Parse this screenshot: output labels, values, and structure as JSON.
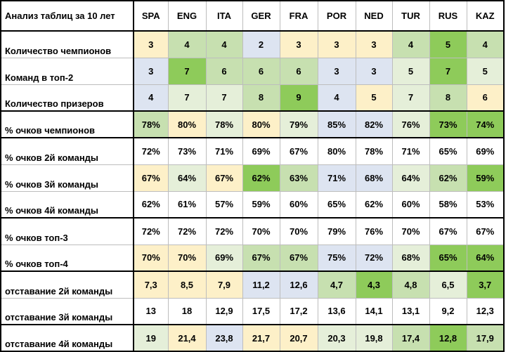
{
  "title": "Анализ таблиц за 10 лет",
  "countries": [
    "SPA",
    "ENG",
    "ITA",
    "GER",
    "FRA",
    "POR",
    "NED",
    "TUR",
    "RUS",
    "KAZ"
  ],
  "colors": {
    "y": "#fdf0c8",
    "b": "#dde4f1",
    "l": "#e5efd9",
    "m": "#c7e0b0",
    "d": "#8ecb5a",
    "w": "#ffffff"
  },
  "rows": [
    {
      "label": "Количество чемпионов",
      "values": [
        "3",
        "4",
        "4",
        "2",
        "3",
        "3",
        "3",
        "4",
        "5",
        "4"
      ],
      "fills": [
        "y",
        "m",
        "m",
        "b",
        "y",
        "y",
        "y",
        "m",
        "d",
        "m"
      ]
    },
    {
      "label": "Команд в топ-2",
      "values": [
        "3",
        "7",
        "6",
        "6",
        "6",
        "3",
        "3",
        "5",
        "7",
        "5"
      ],
      "fills": [
        "b",
        "d",
        "m",
        "m",
        "m",
        "b",
        "b",
        "l",
        "d",
        "l"
      ]
    },
    {
      "label": "Количество призеров",
      "values": [
        "4",
        "7",
        "7",
        "8",
        "9",
        "4",
        "5",
        "7",
        "8",
        "6"
      ],
      "fills": [
        "b",
        "l",
        "l",
        "m",
        "d",
        "b",
        "y",
        "l",
        "m",
        "y"
      ]
    },
    {
      "label": "% очков чемпионов",
      "values": [
        "78%",
        "80%",
        "78%",
        "80%",
        "79%",
        "85%",
        "82%",
        "76%",
        "73%",
        "74%"
      ],
      "fills": [
        "m",
        "y",
        "l",
        "y",
        "l",
        "b",
        "b",
        "l",
        "d",
        "d"
      ]
    },
    {
      "label": "% очков 2й команды",
      "values": [
        "72%",
        "73%",
        "71%",
        "69%",
        "67%",
        "80%",
        "78%",
        "71%",
        "65%",
        "69%"
      ],
      "fills": [
        "w",
        "w",
        "w",
        "w",
        "w",
        "w",
        "w",
        "w",
        "w",
        "w"
      ]
    },
    {
      "label": "% очков 3й команды",
      "values": [
        "67%",
        "64%",
        "67%",
        "62%",
        "63%",
        "71%",
        "68%",
        "64%",
        "62%",
        "59%"
      ],
      "fills": [
        "y",
        "l",
        "y",
        "d",
        "m",
        "b",
        "b",
        "l",
        "m",
        "d"
      ]
    },
    {
      "label": "% очков 4й команды",
      "values": [
        "62%",
        "61%",
        "57%",
        "59%",
        "60%",
        "65%",
        "62%",
        "60%",
        "58%",
        "53%"
      ],
      "fills": [
        "w",
        "w",
        "w",
        "w",
        "w",
        "w",
        "w",
        "w",
        "w",
        "w"
      ]
    },
    {
      "label": "% очков топ-3",
      "values": [
        "72%",
        "72%",
        "72%",
        "70%",
        "70%",
        "79%",
        "76%",
        "70%",
        "67%",
        "67%"
      ],
      "fills": [
        "w",
        "w",
        "w",
        "w",
        "w",
        "w",
        "w",
        "w",
        "w",
        "w"
      ]
    },
    {
      "label": "% очков топ-4",
      "values": [
        "70%",
        "70%",
        "69%",
        "67%",
        "67%",
        "75%",
        "72%",
        "68%",
        "65%",
        "64%"
      ],
      "fills": [
        "y",
        "y",
        "l",
        "m",
        "m",
        "b",
        "b",
        "l",
        "d",
        "d"
      ]
    },
    {
      "label": "отставание 2й команды",
      "values": [
        "7,3",
        "8,5",
        "7,9",
        "11,2",
        "12,6",
        "4,7",
        "4,3",
        "4,8",
        "6,5",
        "3,7"
      ],
      "fills": [
        "y",
        "y",
        "y",
        "b",
        "b",
        "m",
        "d",
        "m",
        "l",
        "d"
      ]
    },
    {
      "label": "отставание 3й команды",
      "values": [
        "13",
        "18",
        "12,9",
        "17,5",
        "17,2",
        "13,6",
        "14,1",
        "13,1",
        "9,2",
        "12,3"
      ],
      "fills": [
        "w",
        "w",
        "w",
        "w",
        "w",
        "w",
        "w",
        "w",
        "w",
        "w"
      ]
    },
    {
      "label": "отставание 4й команды",
      "values": [
        "19",
        "21,4",
        "23,8",
        "21,7",
        "20,7",
        "20,3",
        "19,8",
        "17,4",
        "12,8",
        "17,9"
      ],
      "fills": [
        "l",
        "y",
        "b",
        "y",
        "y",
        "l",
        "l",
        "m",
        "d",
        "m"
      ]
    }
  ]
}
